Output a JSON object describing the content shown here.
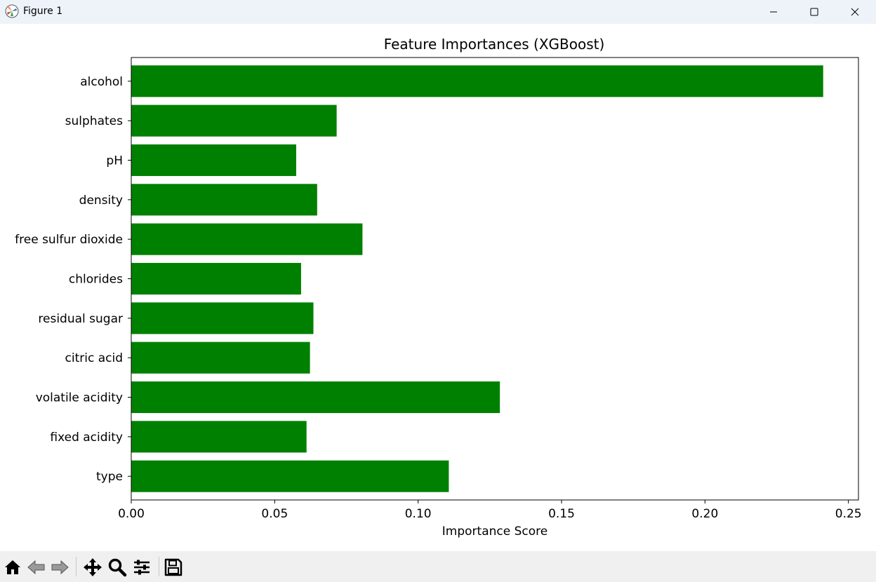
{
  "window": {
    "title": "Figure 1",
    "icon": "matplotlib-icon",
    "controls": [
      "minimize-icon",
      "maximize-icon",
      "close-icon"
    ]
  },
  "toolbar": {
    "buttons": [
      "home-icon",
      "back-arrow-icon",
      "forward-arrow-icon",
      "pan-icon",
      "zoom-icon",
      "configure-subplots-icon",
      "save-icon"
    ]
  },
  "colors": {
    "bar": "#008000",
    "titlebar": "#eef3fa",
    "toolbar": "#f0f0f0"
  },
  "chart_data": {
    "type": "bar",
    "orientation": "horizontal",
    "title": "Feature Importances (XGBoost)",
    "xlabel": "Importance Score",
    "ylabel": "",
    "xlim": [
      0,
      0.2535
    ],
    "xticks": [
      0.0,
      0.05,
      0.1,
      0.15,
      0.2,
      0.25
    ],
    "xtick_labels": [
      "0.00",
      "0.05",
      "0.10",
      "0.15",
      "0.20",
      "0.25"
    ],
    "categories": [
      "type",
      "fixed acidity",
      "volatile acidity",
      "citric acid",
      "residual sugar",
      "chlorides",
      "free sulfur dioxide",
      "density",
      "pH",
      "sulphates",
      "alcohol"
    ],
    "values": [
      0.1107,
      0.0611,
      0.1285,
      0.0623,
      0.0635,
      0.0592,
      0.0806,
      0.0648,
      0.0575,
      0.0716,
      0.2412
    ],
    "grid": false,
    "legend": "none"
  }
}
